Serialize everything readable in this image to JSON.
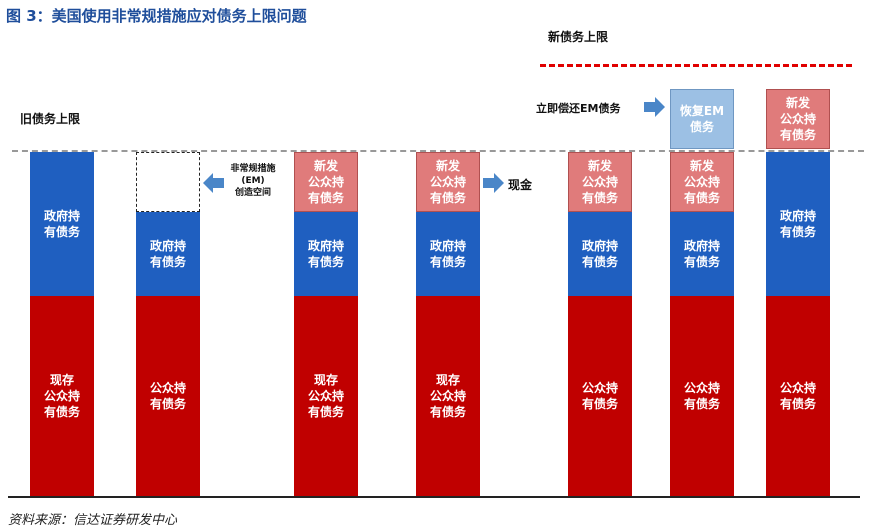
{
  "title": "图 3：美国使用非常规措施应对债务上限问题",
  "source": "资料来源：信达证券研发中心",
  "labels": {
    "old_limit": "旧债务上限",
    "new_limit": "新债务上限",
    "em_space": "非常规措施\n(EM)\n创造空间",
    "cash": "现金",
    "repay_em": "立即偿还EM债务"
  },
  "bars": [
    {
      "segments": [
        "现存\n公众持\n有债务",
        "政府持\n有债务"
      ]
    },
    {
      "segments": [
        "公众持\n有债务",
        "政府持\n有债务",
        ""
      ]
    },
    {
      "segments": [
        "现存\n公众持\n有债务",
        "政府持\n有债务",
        "新发\n公众持\n有债务"
      ]
    },
    {
      "segments": [
        "现存\n公众持\n有债务",
        "政府持\n有债务",
        "新发\n公众持\n有债务"
      ]
    },
    {
      "segments": [
        "公众持\n有债务",
        "政府持\n有债务",
        "新发\n公众持\n有债务"
      ]
    },
    {
      "segments": [
        "公众持\n有债务",
        "政府持\n有债务",
        "新发\n公众持\n有债务",
        "恢复EM\n债务"
      ]
    },
    {
      "segments": [
        "公众持\n有债务",
        "政府持\n有债务",
        "新发\n公众持\n有债务"
      ]
    }
  ],
  "colors": {
    "public_debt": "#c00000",
    "government_debt": "#1f5fc0",
    "new_debt": "#e07b7b",
    "restored_em": "#9cc0e4",
    "arrow": "#4a86c8",
    "new_limit_line": "#e00000",
    "old_limit_line": "#999999"
  }
}
